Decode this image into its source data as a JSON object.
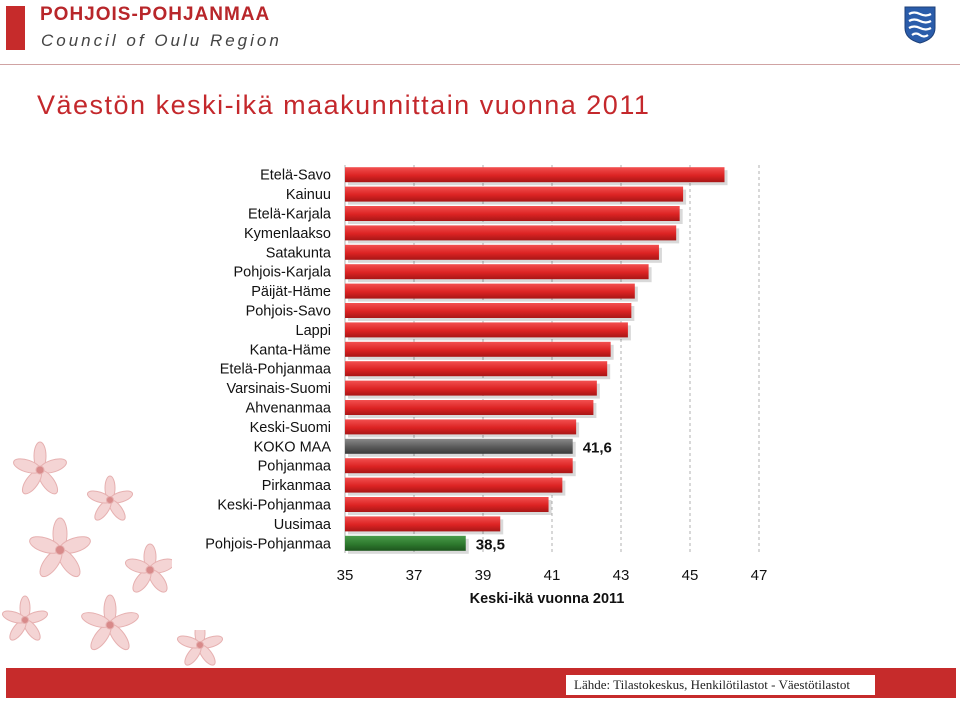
{
  "header": {
    "org_name": "POHJOIS-POHJANMAA",
    "org_sub": "Council of Oulu Region",
    "logo_icon": "coat-of-arms-icon"
  },
  "slide": {
    "title": "Väestön keski-ikä maakunnittain vuonna 2011"
  },
  "colors": {
    "brand_red": "#c62b2b",
    "bar_red": "#e02a2a",
    "bar_gray": "#606060",
    "bar_green": "#2e7a2e"
  },
  "chart_data": {
    "type": "bar",
    "orientation": "horizontal",
    "xlabel": "Keski-ikä vuonna 2011",
    "xlim": [
      35,
      47
    ],
    "xticks": [
      "35",
      "37",
      "39",
      "41",
      "43",
      "45",
      "47"
    ],
    "grid": "vertical dashed",
    "categories": [
      "Etelä-Savo",
      "Kainuu",
      "Etelä-Karjala",
      "Kymenlaakso",
      "Satakunta",
      "Pohjois-Karjala",
      "Päijät-Häme",
      "Pohjois-Savo",
      "Lappi",
      "Kanta-Häme",
      "Etelä-Pohjanmaa",
      "Varsinais-Suomi",
      "Ahvenanmaa",
      "Keski-Suomi",
      "KOKO MAA",
      "Pohjanmaa",
      "Pirkanmaa",
      "Keski-Pohjanmaa",
      "Uusimaa",
      "Pohjois-Pohjanmaa"
    ],
    "values": [
      46.0,
      44.8,
      44.7,
      44.6,
      44.1,
      43.8,
      43.4,
      43.3,
      43.2,
      42.7,
      42.6,
      42.3,
      42.2,
      41.7,
      41.6,
      41.6,
      41.3,
      40.9,
      39.5,
      38.5
    ],
    "highlight": {
      "KOKO MAA": {
        "color": "#606060",
        "label": "41,6"
      },
      "Pohjois-Pohjanmaa": {
        "color": "#2e7a2e",
        "label": "38,5"
      }
    }
  },
  "footer": {
    "source": "Lähde: Tilastokeskus, Henkilötilastot - Väestötilastot"
  }
}
